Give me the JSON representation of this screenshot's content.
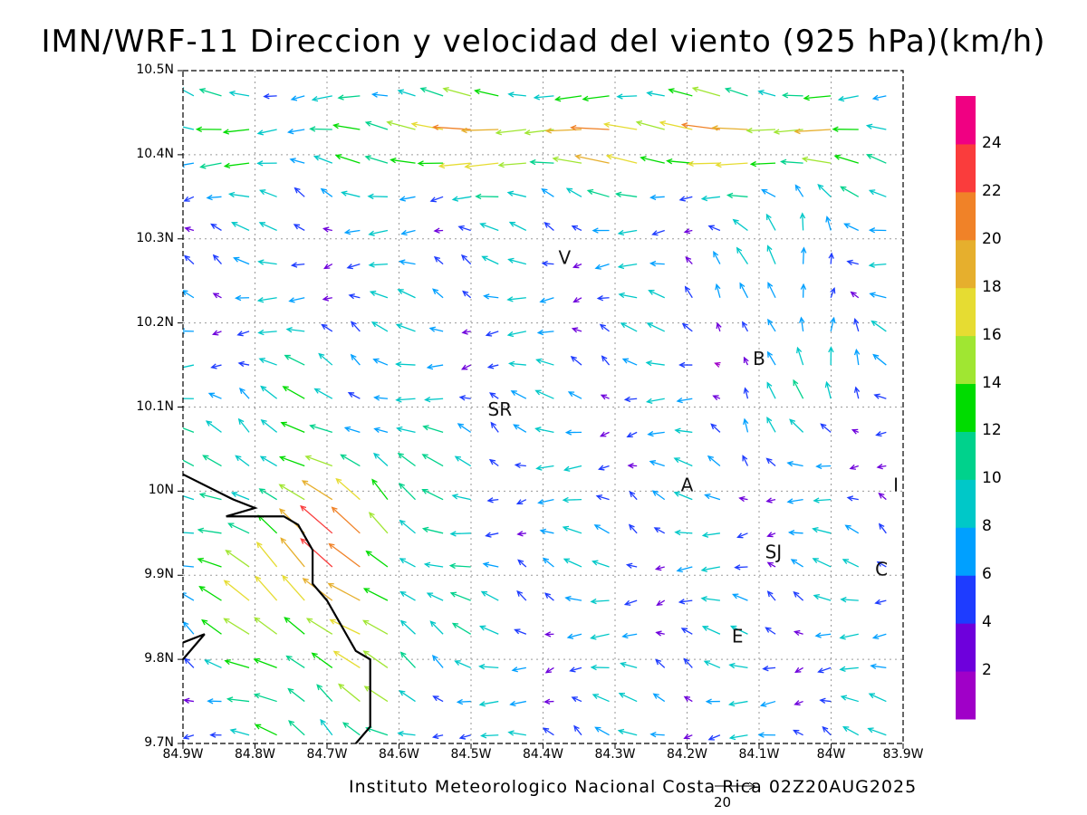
{
  "title": "IMN/WRF-11 Direccion y velocidad del viento (925 hPa)(km/h)",
  "footer": "Instituto Meteorologico Nacional Costa Rica 02Z20AUG2025",
  "reference_vector_label": "20",
  "map_extent": {
    "lon_min": -84.9,
    "lon_max": -83.9,
    "lat_min": 9.7,
    "lat_max": 10.5
  },
  "lat_labels": [
    "10.5N",
    "10.4N",
    "10.3N",
    "10.2N",
    "10.1N",
    "10N",
    "9.9N",
    "9.8N",
    "9.7N"
  ],
  "lon_labels": [
    "84.9W",
    "84.8W",
    "84.7W",
    "84.6W",
    "84.5W",
    "84.4W",
    "84.3W",
    "84.2W",
    "84.1W",
    "84W",
    "83.9W"
  ],
  "colorbar": {
    "colors": [
      "#a000c8",
      "#6e00dc",
      "#1e3cff",
      "#00a0ff",
      "#00c8c8",
      "#00d28c",
      "#00dc00",
      "#a0e632",
      "#e6dc32",
      "#e6af2d",
      "#f08228",
      "#fa3c3c",
      "#f00082"
    ],
    "labels": [
      "2",
      "4",
      "6",
      "8",
      "10",
      "12",
      "14",
      "16",
      "18",
      "20",
      "22",
      "24"
    ]
  },
  "city_labels": [
    {
      "text": "V",
      "lon": -84.37,
      "lat": 10.27
    },
    {
      "text": "B",
      "lon": -84.1,
      "lat": 10.15
    },
    {
      "text": "SR",
      "lon": -84.46,
      "lat": 10.09
    },
    {
      "text": "A",
      "lon": -84.2,
      "lat": 10.0
    },
    {
      "text": "I",
      "lon": -83.91,
      "lat": 10.0
    },
    {
      "text": "SJ",
      "lon": -84.08,
      "lat": 9.92
    },
    {
      "text": "C",
      "lon": -83.93,
      "lat": 9.9
    },
    {
      "text": "E",
      "lon": -84.13,
      "lat": 9.82
    }
  ],
  "coastline": [
    [
      -84.9,
      10.02
    ],
    [
      -84.83,
      9.99
    ],
    [
      -84.8,
      9.98
    ],
    [
      -84.84,
      9.97
    ],
    [
      -84.8,
      9.97
    ],
    [
      -84.76,
      9.97
    ],
    [
      -84.74,
      9.96
    ],
    [
      -84.72,
      9.93
    ],
    [
      -84.72,
      9.89
    ],
    [
      -84.7,
      9.87
    ],
    [
      -84.68,
      9.84
    ],
    [
      -84.66,
      9.81
    ],
    [
      -84.64,
      9.8
    ],
    [
      -84.64,
      9.76
    ],
    [
      -84.64,
      9.72
    ],
    [
      -84.66,
      9.7
    ]
  ],
  "nicoya_fragment": [
    [
      -84.9,
      9.82
    ],
    [
      -84.87,
      9.83
    ],
    [
      -84.9,
      9.8
    ]
  ]
}
